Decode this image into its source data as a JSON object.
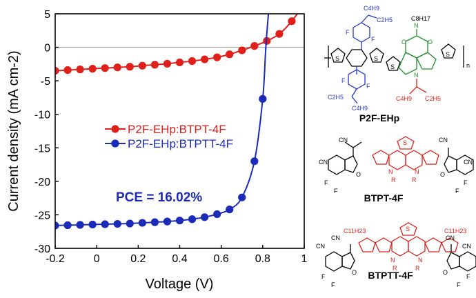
{
  "chart_data": {
    "type": "line",
    "title": "",
    "xlabel": "Voltage (V)",
    "ylabel": "Current density (mA cm-2)",
    "xlim": [
      -0.2,
      1.0
    ],
    "ylim": [
      -30,
      5
    ],
    "xticks": [
      -0.2,
      0,
      0.2,
      0.4,
      0.6,
      0.8,
      1
    ],
    "xtick_labels": [
      "-0.2",
      "0",
      "0.2",
      "0.4",
      "0.6",
      "0.8",
      "1"
    ],
    "yticks": [
      5,
      0,
      -5,
      -10,
      -15,
      -20,
      -25,
      -30
    ],
    "ytick_labels": [
      "5",
      "0",
      "-5",
      "-10",
      "-15",
      "-20",
      "-25",
      "-30"
    ],
    "zero_line": true,
    "legend_position": "center-left",
    "annotation": "PCE = 16.02%",
    "series": [
      {
        "name": "P2F-EHp:BTPT-4F",
        "color": "#e0201b",
        "x": [
          -0.2,
          -0.14,
          -0.08,
          -0.02,
          0.04,
          0.1,
          0.16,
          0.22,
          0.28,
          0.34,
          0.4,
          0.46,
          0.52,
          0.58,
          0.64,
          0.7,
          0.76,
          0.82,
          0.88,
          0.94
        ],
        "y": [
          -3.5,
          -3.4,
          -3.3,
          -3.2,
          -3.1,
          -3.0,
          -2.9,
          -2.75,
          -2.6,
          -2.45,
          -2.25,
          -2.05,
          -1.8,
          -1.5,
          -1.05,
          -0.45,
          0.2,
          0.95,
          2.0,
          3.9
        ]
      },
      {
        "name": "P2F-EHp:BTPTT-4F",
        "color": "#1b2ab8",
        "x": [
          -0.2,
          -0.14,
          -0.08,
          -0.02,
          0.04,
          0.1,
          0.16,
          0.22,
          0.28,
          0.34,
          0.4,
          0.46,
          0.52,
          0.58,
          0.64,
          0.7,
          0.76,
          0.8
        ],
        "y": [
          -26.6,
          -26.55,
          -26.5,
          -26.45,
          -26.4,
          -26.35,
          -26.3,
          -26.2,
          -26.1,
          -26.0,
          -25.85,
          -25.65,
          -25.35,
          -24.9,
          -24.2,
          -22.4,
          -17.0,
          -7.7
        ]
      }
    ]
  },
  "molecules": {
    "polymer": {
      "name": "P2F-EHp",
      "labels": [
        "C4H9",
        "C2H5",
        "C8H17",
        "C2H5",
        "C4H9",
        "C4H9",
        "C2H5",
        "n"
      ]
    },
    "acceptor1": {
      "name": "BTPT-4F",
      "labels": [
        "CN",
        "CN",
        "CN",
        "CN",
        "R",
        "R"
      ]
    },
    "acceptor2": {
      "name": "BTPTT-4F",
      "labels": [
        "C11H23",
        "C11H23",
        "CN",
        "CN",
        "CN",
        "CN",
        "R",
        "R"
      ]
    }
  }
}
